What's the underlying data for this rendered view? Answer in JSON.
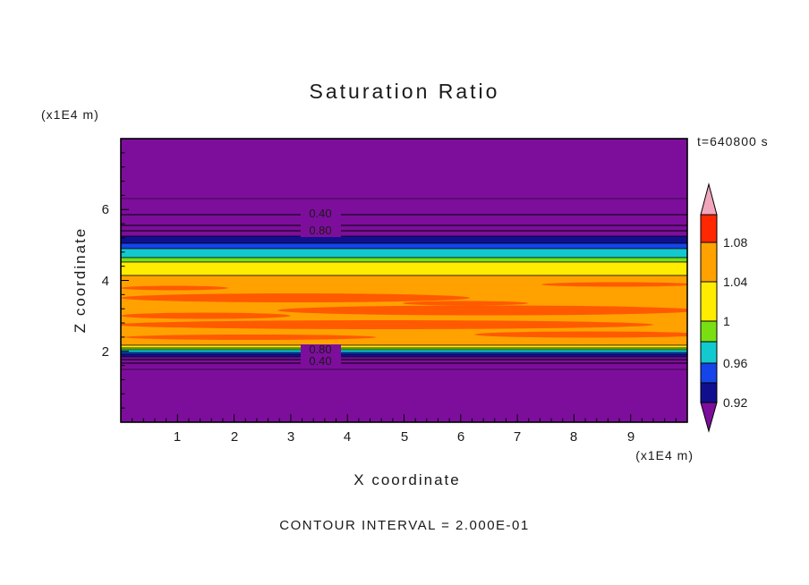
{
  "colors": {
    "purple": "#7D0E9C",
    "navy": "#10108F",
    "blue": "#1545E8",
    "cyan": "#12C9CF",
    "green": "#79DF12",
    "yellow": "#FFEC00",
    "orange": "#FFA200",
    "orange_dark": "#FF5A00",
    "red": "#FF2800",
    "pink": "#F2A6BC",
    "text": "#1A1A1A",
    "frame": "#000000"
  },
  "chart_data": {
    "type": "heatmap",
    "subtype": "filled-contour-plot",
    "title": "Saturation Ratio",
    "annotation_time": "t=640800 s",
    "xlabel": "X coordinate",
    "x_unit": "(x1E4 m)",
    "ylabel": "Z coordinate",
    "y_unit": "(x1E4 m)",
    "xlim": [
      0,
      10
    ],
    "ylim": [
      0,
      8
    ],
    "x_ticks": [
      "1",
      "2",
      "3",
      "4",
      "5",
      "6",
      "7",
      "8",
      "9"
    ],
    "y_ticks": [
      "2",
      "4",
      "6"
    ],
    "contour_interval": 0.2,
    "contour_interval_label": "CONTOUR INTERVAL = 2.000E-01",
    "colorbar": {
      "tick_labels": [
        "1.08",
        "1.04",
        "1",
        "0.96",
        "0.92"
      ],
      "bands_top_to_bottom": [
        "pink",
        "red",
        "orange",
        "yellow",
        "green",
        "cyan",
        "blue",
        "navy",
        "purple"
      ]
    },
    "field_bands_top_to_bottom": [
      {
        "z_from": 8.0,
        "z_to": 5.25,
        "color": "purple",
        "value_range": "< 0.88"
      },
      {
        "z_from": 5.25,
        "z_to": 5.05,
        "color": "navy",
        "value_range": "0.88 - 0.92"
      },
      {
        "z_from": 5.05,
        "z_to": 4.9,
        "color": "blue",
        "value_range": "0.92 - 0.96"
      },
      {
        "z_from": 4.9,
        "z_to": 4.65,
        "color": "cyan",
        "value_range": "0.96 - 1.00"
      },
      {
        "z_from": 4.65,
        "z_to": 4.5,
        "color": "green",
        "value_range": "~1.00"
      },
      {
        "z_from": 4.5,
        "z_to": 4.15,
        "color": "yellow",
        "value_range": "1.00 - 1.04"
      },
      {
        "z_from": 4.15,
        "z_to": 2.17,
        "color": "orange",
        "value_range": "1.04 - 1.08",
        "note": "contains darker orange streaks >= 1.08"
      },
      {
        "z_from": 2.17,
        "z_to": 1.9,
        "color": "thin yellow/green/cyan/blue/navy bands",
        "value_range": "0.88 - 1.04"
      },
      {
        "z_from": 1.9,
        "z_to": 0.0,
        "color": "purple",
        "value_range": "< 0.88"
      }
    ],
    "line_contour_labels": [
      {
        "text": "0.40",
        "x": 3.5,
        "z": 5.8
      },
      {
        "text": "0.80",
        "x": 3.5,
        "z": 5.3
      },
      {
        "text": "0.80",
        "x": 3.5,
        "z": 2.0
      },
      {
        "text": "0.40",
        "x": 3.5,
        "z": 1.6
      }
    ]
  }
}
